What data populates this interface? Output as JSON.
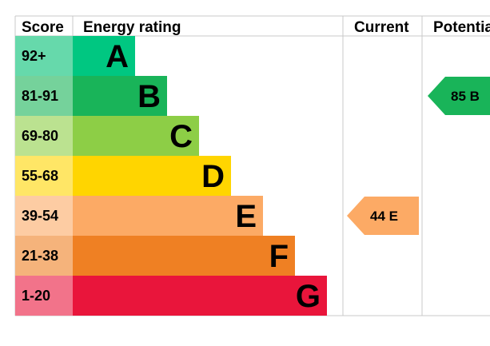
{
  "chart_data": {
    "type": "table",
    "headers": {
      "score": "Score",
      "rating": "Energy rating",
      "current": "Current",
      "potential": "Potential"
    },
    "bands": [
      {
        "letter": "A",
        "range": "92+",
        "min": 92,
        "max": 100,
        "color": "#00c781",
        "score_color": "#66d9ab"
      },
      {
        "letter": "B",
        "range": "81-91",
        "min": 81,
        "max": 91,
        "color": "#19b459",
        "score_color": "#75d29b"
      },
      {
        "letter": "C",
        "range": "69-80",
        "min": 69,
        "max": 80,
        "color": "#8dce46",
        "score_color": "#bbe290"
      },
      {
        "letter": "D",
        "range": "55-68",
        "min": 55,
        "max": 68,
        "color": "#ffd500",
        "score_color": "#ffe666"
      },
      {
        "letter": "E",
        "range": "39-54",
        "min": 39,
        "max": 54,
        "color": "#fcaa65",
        "score_color": "#fdcca3"
      },
      {
        "letter": "F",
        "range": "21-38",
        "min": 21,
        "max": 38,
        "color": "#ef8023",
        "score_color": "#f5b37b"
      },
      {
        "letter": "G",
        "range": "1-20",
        "min": 1,
        "max": 20,
        "color": "#e9153b",
        "score_color": "#f2738a"
      }
    ],
    "current": {
      "value": 44,
      "band": "E",
      "label": "44 E",
      "color": "#fcaa65"
    },
    "potential": {
      "value": 85,
      "band": "B",
      "label": "85 B",
      "color": "#19b459"
    }
  }
}
